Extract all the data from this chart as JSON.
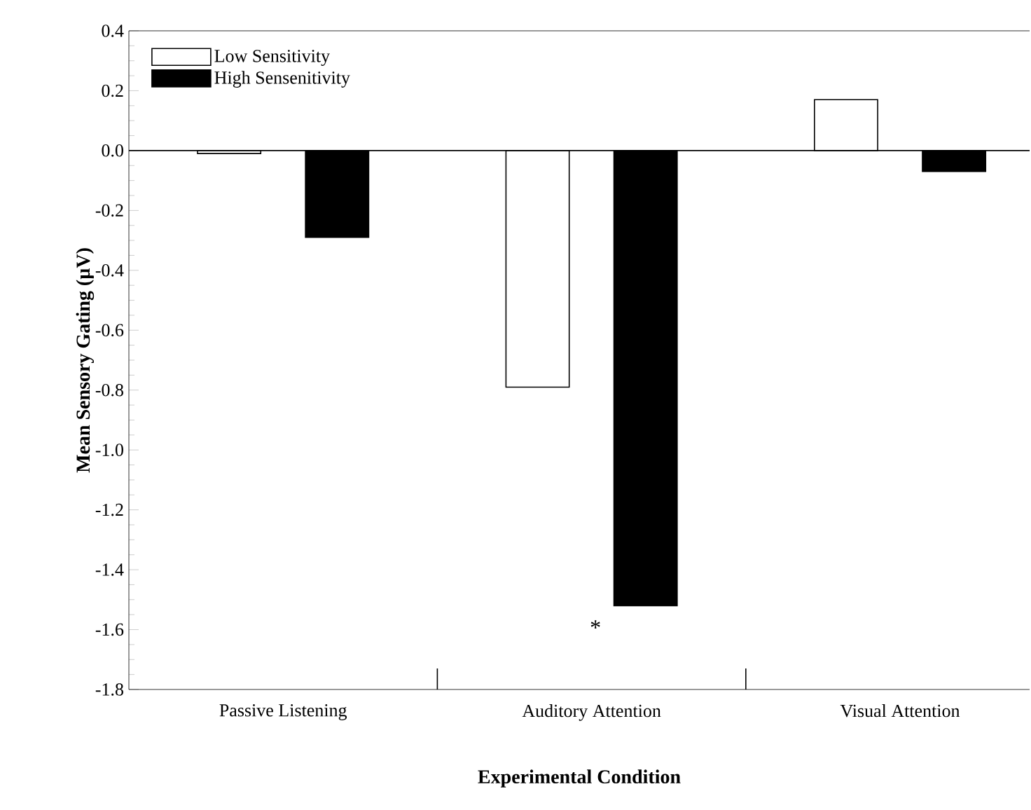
{
  "chart_data": {
    "type": "bar",
    "xlabel": "Experimental Condition",
    "ylabel": "Mean Sensory Gating (µV)",
    "categories": [
      "Passive Listening",
      "Auditory Attention",
      "Visual Attention"
    ],
    "series": [
      {
        "name": "Low Sensitivity",
        "color": "#ffffff",
        "values": [
          -0.01,
          -0.79,
          0.17
        ]
      },
      {
        "name": "High Sensenitivity",
        "color": "#000000",
        "values": [
          -0.29,
          -1.52,
          -0.07
        ]
      }
    ],
    "ylim": [
      -1.8,
      0.4
    ],
    "yticks": [
      {
        "value": -1.8,
        "label": "-1.8"
      },
      {
        "value": -1.6,
        "label": "-1.6"
      },
      {
        "value": -1.4,
        "label": "-1.4"
      },
      {
        "value": -1.2,
        "label": "-1.2"
      },
      {
        "value": -1.0,
        "label": "-1.0"
      },
      {
        "value": -0.8,
        "label": "-0.8"
      },
      {
        "value": -0.6,
        "label": "-0.6"
      },
      {
        "value": -0.4,
        "label": "-0.4"
      },
      {
        "value": -0.2,
        "label": "-0.2"
      },
      {
        "value": 0.0,
        "label": "0.0"
      },
      {
        "value": 0.2,
        "label": "0.2"
      },
      {
        "value": 0.4,
        "label": "0.4"
      }
    ],
    "ref_lines": [
      {
        "axis": "y",
        "value": 0,
        "color": "#000000"
      }
    ],
    "annotations": [
      "*"
    ],
    "legend": "top left",
    "grid": false
  }
}
